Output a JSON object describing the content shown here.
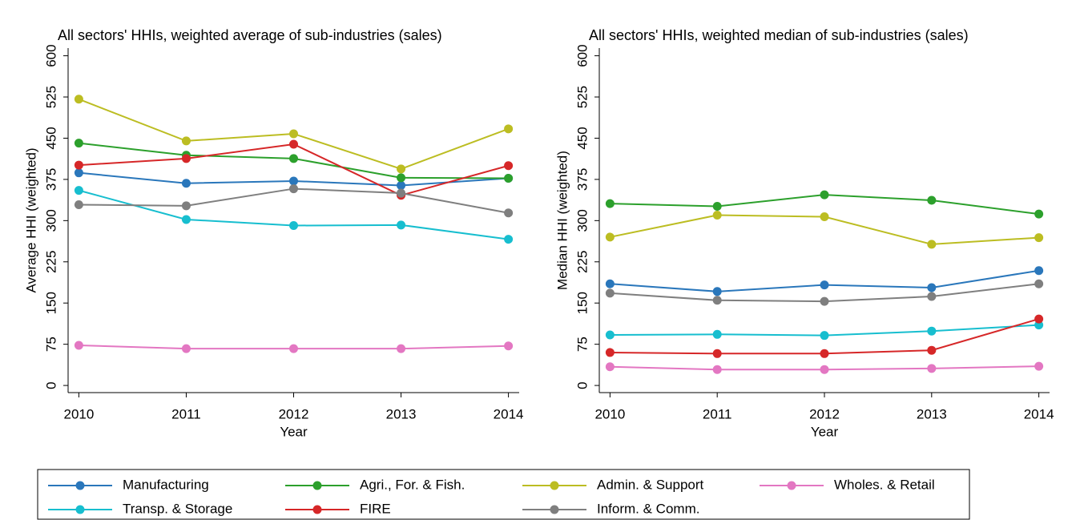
{
  "chart_data": [
    {
      "type": "line",
      "title": "All sectors' HHIs, weighted average of sub-industries (sales)",
      "x_label": "Year",
      "y_label": "Average HHI (weighted)",
      "x": [
        2010,
        2011,
        2012,
        2013,
        2014
      ],
      "xlim": [
        2009.9,
        2014.1
      ],
      "xticks": [
        2010,
        2011,
        2012,
        2013,
        2014
      ],
      "ylim": [
        -13,
        614
      ],
      "yticks": [
        0,
        75,
        150,
        225,
        300,
        375,
        450,
        525,
        600
      ],
      "legend": "bottom",
      "series": [
        {
          "name": "Manufacturing",
          "color": "#2a77bb",
          "values": [
            387,
            368,
            372,
            364,
            377
          ]
        },
        {
          "name": "Agri., For. & Fish.",
          "color": "#2ca02c",
          "values": [
            441,
            419,
            413,
            378,
            377
          ]
        },
        {
          "name": "Admin. & Support",
          "color": "#bcbd22",
          "values": [
            521,
            445,
            458,
            394,
            467
          ]
        },
        {
          "name": "Wholes. & Retail",
          "color": "#e377c2",
          "values": [
            73,
            67,
            67,
            67,
            72
          ]
        },
        {
          "name": "Transp. & Storage",
          "color": "#17becf",
          "values": [
            355,
            302,
            291,
            292,
            266
          ]
        },
        {
          "name": "FIRE",
          "color": "#d62728",
          "values": [
            401,
            413,
            439,
            346,
            400
          ]
        },
        {
          "name": "Inform. & Comm.",
          "color": "#7f7f7f",
          "values": [
            329,
            327,
            358,
            350,
            314
          ]
        }
      ]
    },
    {
      "type": "line",
      "title": "All sectors' HHIs, weighted median of sub-industries (sales)",
      "x_label": "Year",
      "y_label": "Median HHI (weighted)",
      "x": [
        2010,
        2011,
        2012,
        2013,
        2014
      ],
      "xlim": [
        2009.9,
        2014.1
      ],
      "xticks": [
        2010,
        2011,
        2012,
        2013,
        2014
      ],
      "ylim": [
        -13,
        614
      ],
      "yticks": [
        0,
        75,
        150,
        225,
        300,
        375,
        450,
        525,
        600
      ],
      "series": [
        {
          "name": "Manufacturing",
          "color": "#2a77bb",
          "values": [
            185,
            171,
            183,
            178,
            209
          ]
        },
        {
          "name": "Agri., For. & Fish.",
          "color": "#2ca02c",
          "values": [
            331,
            326,
            347,
            337,
            312
          ]
        },
        {
          "name": "Admin. & Support",
          "color": "#bcbd22",
          "values": [
            270,
            310,
            307,
            257,
            269
          ]
        },
        {
          "name": "Wholes. & Retail",
          "color": "#e377c2",
          "values": [
            34,
            29,
            29,
            31,
            35
          ]
        },
        {
          "name": "Transp. & Storage",
          "color": "#17becf",
          "values": [
            92,
            93,
            91,
            99,
            110
          ]
        },
        {
          "name": "FIRE",
          "color": "#d62728",
          "values": [
            60,
            58,
            58,
            64,
            121
          ]
        },
        {
          "name": "Inform. & Comm.",
          "color": "#7f7f7f",
          "values": [
            168,
            155,
            153,
            162,
            185
          ]
        }
      ]
    }
  ]
}
